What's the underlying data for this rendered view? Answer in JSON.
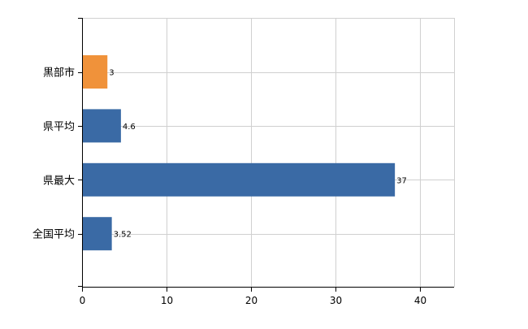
{
  "chart_data": {
    "type": "bar",
    "orientation": "horizontal",
    "categories": [
      "黒部市",
      "県平均",
      "県最大",
      "全国平均"
    ],
    "values": [
      3,
      4.6,
      37,
      3.52
    ],
    "data_labels": [
      "3",
      "4.6",
      "37",
      "3.52"
    ],
    "colors": [
      "#F0923A",
      "#3A6AA5",
      "#3A6AA5",
      "#3A6AA5"
    ],
    "xlim": [
      0,
      44
    ],
    "x_ticks": [
      0,
      10,
      20,
      30,
      40
    ],
    "x_tick_labels": [
      "0",
      "10",
      "20",
      "30",
      "40"
    ],
    "grid": true,
    "gridline_color": "#d0d0d0",
    "axis_color": "#000000",
    "legend": "none",
    "title": "",
    "xlabel": "",
    "ylabel": ""
  }
}
